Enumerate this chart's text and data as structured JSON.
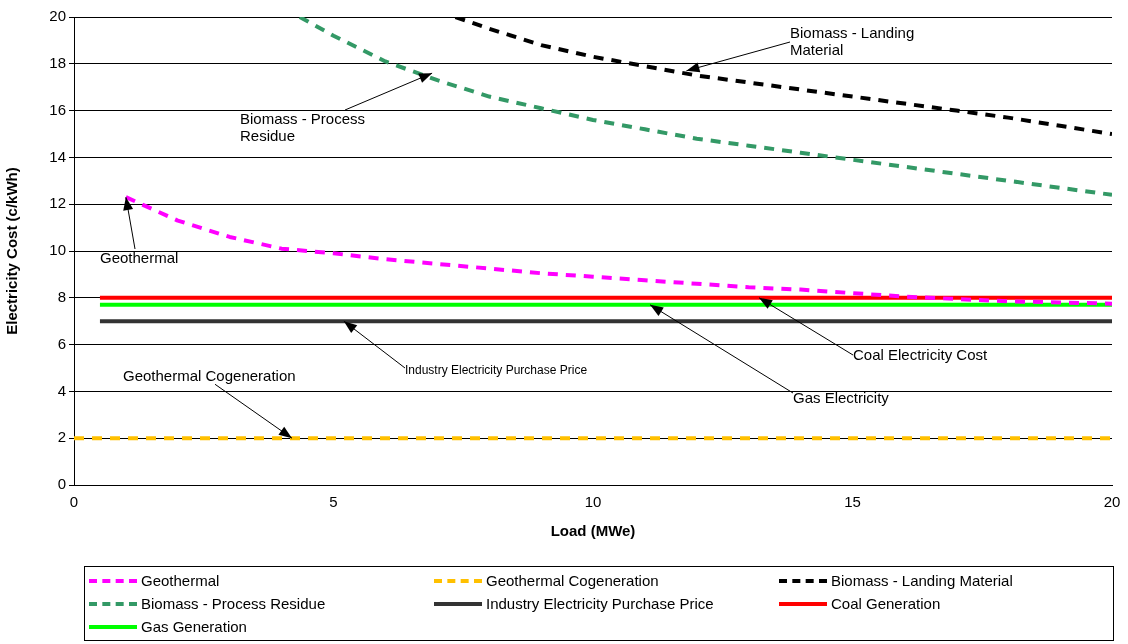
{
  "chart_data": {
    "type": "line",
    "xlabel": "Load (MWe)",
    "ylabel": "Electricity Cost (c/kWh)",
    "xlim": [
      0,
      20
    ],
    "xticks": [
      0,
      5,
      10,
      15,
      20
    ],
    "ylim": [
      0,
      20
    ],
    "yticks": [
      0,
      2,
      4,
      6,
      8,
      10,
      12,
      14,
      16,
      18,
      20
    ],
    "grid": "y",
    "legend": "bottom",
    "marker": "none",
    "series": [
      {
        "name": "Geothermal",
        "color": "#ff00ff",
        "line_style": "dashed",
        "x": [
          1,
          2,
          3,
          4,
          5,
          6,
          7,
          8,
          9,
          10,
          11,
          12,
          13,
          14,
          15,
          16,
          17,
          18,
          19,
          20
        ],
        "values": [
          12.3,
          11.3,
          10.6,
          10.1,
          9.9,
          9.65,
          9.45,
          9.25,
          9.05,
          8.9,
          8.75,
          8.6,
          8.45,
          8.35,
          8.2,
          8.05,
          7.95,
          7.85,
          7.8,
          7.75
        ]
      },
      {
        "name": "Geothermal Cogeneration",
        "color": "#ffc000",
        "line_style": "dashed",
        "x": [
          0,
          20
        ],
        "values": [
          2,
          2
        ]
      },
      {
        "name": "Biomass - Landing Material",
        "color": "#000000",
        "line_style": "dashed",
        "x": [
          7.35,
          8,
          9,
          10,
          11,
          12,
          13,
          14,
          15,
          16,
          17,
          18,
          19,
          20
        ],
        "values": [
          20,
          19.5,
          18.8,
          18.3,
          17.9,
          17.5,
          17.2,
          16.9,
          16.6,
          16.3,
          16,
          15.7,
          15.35,
          15
        ]
      },
      {
        "name": "Biomass - Process Residue",
        "color": "#339966",
        "line_style": "dashed",
        "x": [
          4.35,
          5,
          6,
          7,
          8,
          9,
          10,
          11,
          12,
          13,
          14,
          15,
          16,
          17,
          18,
          19,
          20
        ],
        "values": [
          20,
          19.2,
          18.1,
          17.3,
          16.6,
          16.1,
          15.6,
          15.2,
          14.8,
          14.5,
          14.2,
          13.9,
          13.6,
          13.3,
          13,
          12.7,
          12.4
        ]
      },
      {
        "name": "Industry Electricity Purchase Price",
        "color": "#333333",
        "line_style": "solid",
        "x": [
          0.5,
          20
        ],
        "values": [
          7,
          7
        ]
      },
      {
        "name": "Coal Generation",
        "color": "#ff0000",
        "line_style": "solid",
        "x": [
          0.5,
          20
        ],
        "values": [
          8,
          8
        ]
      },
      {
        "name": "Gas Generation",
        "color": "#00ff00",
        "line_style": "solid",
        "x": [
          0.5,
          20
        ],
        "values": [
          7.7,
          7.7
        ]
      }
    ],
    "annotations": [
      {
        "text": "Biomass - Landing Material",
        "x": 11.8,
        "y": 17.7
      },
      {
        "text": "Biomass - Process Residue",
        "x": 6.9,
        "y": 17.6
      },
      {
        "text": "Geothermal",
        "x": 1,
        "y": 12.3
      },
      {
        "text": "Industry Electricity Purchase Price",
        "x": 5.2,
        "y": 7
      },
      {
        "text": "Geothermal Cogeneration",
        "x": 4.2,
        "y": 2
      },
      {
        "text": "Gas Electricity",
        "x": 11.1,
        "y": 7.7
      },
      {
        "text": "Coal Electricity Cost",
        "x": 13.2,
        "y": 8
      }
    ]
  }
}
